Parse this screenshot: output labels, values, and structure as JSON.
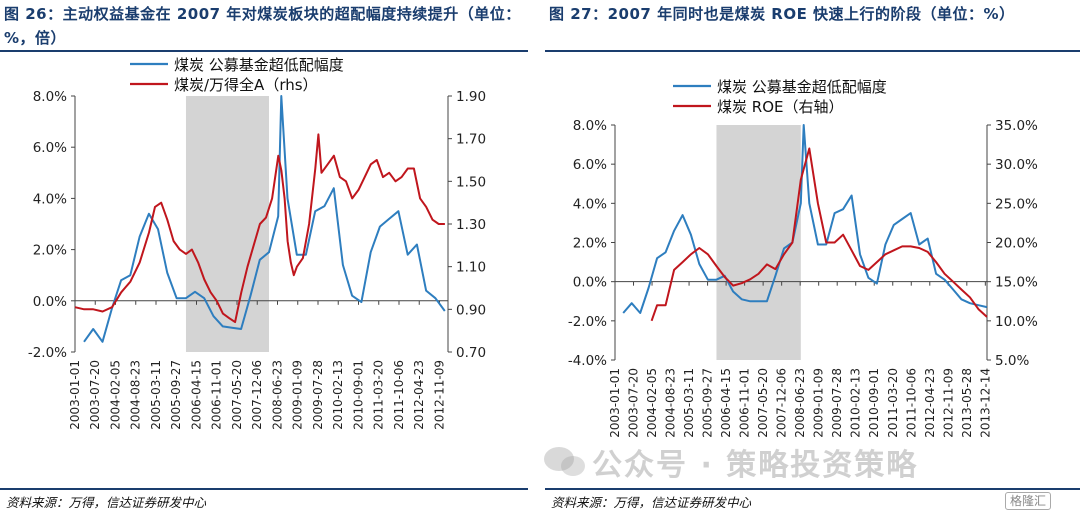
{
  "left": {
    "title": "图 26：主动权益基金在 2007 年对煤炭板块的超配幅度持续提升（单位：%，倍）",
    "source": "资料来源：万得，信达证券研发中心"
  },
  "right": {
    "title": "图 27：2007 年同时也是煤炭 ROE 快速上行的阶段（单位：%）",
    "source": "资料来源：万得，信达证券研发中心"
  },
  "watermark": "公众号 · 策略投资策略",
  "logo": "格隆汇",
  "chart_data": [
    {
      "type": "line",
      "x_ticks": [
        "2003-01-01",
        "2003-07-20",
        "2004-02-05",
        "2004-08-23",
        "2005-03-11",
        "2005-09-27",
        "2006-04-15",
        "2006-11-01",
        "2007-05-20",
        "2007-12-06",
        "2008-06-23",
        "2009-01-09",
        "2009-07-28",
        "2010-02-13",
        "2010-09-01",
        "2011-03-20",
        "2011-10-06",
        "2012-04-23",
        "2012-11-09"
      ],
      "x_range": [
        "2003-01-01",
        "2013-02-01"
      ],
      "y_left_ticks": [
        "-2.0%",
        "0.0%",
        "2.0%",
        "4.0%",
        "6.0%",
        "8.0%"
      ],
      "y_left_range": [
        -2,
        8
      ],
      "y_right_ticks": [
        "0.70",
        "0.90",
        "1.10",
        "1.30",
        "1.50",
        "1.70",
        "1.90"
      ],
      "y_right_range": [
        0.7,
        1.9
      ],
      "shaded_range": [
        "2006-01-01",
        "2008-03-31"
      ],
      "grid": false,
      "legend_position": "top",
      "series": [
        {
          "name": "煤炭 公募基金超低配幅度",
          "color": "#2e7ebf",
          "axis": "left",
          "points": [
            [
              "2003-03-31",
              -1.6
            ],
            [
              "2003-06-30",
              -1.1
            ],
            [
              "2003-09-30",
              -1.6
            ],
            [
              "2003-12-31",
              -0.3
            ],
            [
              "2004-03-31",
              0.8
            ],
            [
              "2004-06-30",
              1.0
            ],
            [
              "2004-09-30",
              2.5
            ],
            [
              "2004-12-31",
              3.4
            ],
            [
              "2005-03-31",
              2.8
            ],
            [
              "2005-06-30",
              1.1
            ],
            [
              "2005-09-30",
              0.1
            ],
            [
              "2005-12-31",
              0.1
            ],
            [
              "2006-03-31",
              0.35
            ],
            [
              "2006-06-30",
              0.1
            ],
            [
              "2006-09-30",
              -0.6
            ],
            [
              "2006-12-31",
              -1.0
            ],
            [
              "2007-03-31",
              -1.05
            ],
            [
              "2007-06-30",
              -1.1
            ],
            [
              "2007-09-30",
              0.2
            ],
            [
              "2007-12-31",
              1.6
            ],
            [
              "2008-03-31",
              1.9
            ],
            [
              "2008-06-30",
              3.3
            ],
            [
              "2008-07-31",
              8.0
            ],
            [
              "2008-09-30",
              4.0
            ],
            [
              "2008-12-31",
              1.8
            ],
            [
              "2009-03-31",
              1.8
            ],
            [
              "2009-06-30",
              3.5
            ],
            [
              "2009-09-30",
              3.7
            ],
            [
              "2009-12-31",
              4.4
            ],
            [
              "2010-03-31",
              1.4
            ],
            [
              "2010-06-30",
              0.2
            ],
            [
              "2010-09-30",
              -0.05
            ],
            [
              "2010-12-31",
              1.9
            ],
            [
              "2011-03-31",
              2.9
            ],
            [
              "2011-06-30",
              3.2
            ],
            [
              "2011-09-30",
              3.5
            ],
            [
              "2011-12-31",
              1.8
            ],
            [
              "2012-03-31",
              2.2
            ],
            [
              "2012-06-30",
              0.4
            ],
            [
              "2012-09-30",
              0.1
            ],
            [
              "2012-12-31",
              -0.4
            ]
          ]
        },
        {
          "name": "煤炭/万得全A（rhs）",
          "color": "#c0161d",
          "axis": "right",
          "points": [
            [
              "2003-01-01",
              0.91
            ],
            [
              "2003-04-01",
              0.9
            ],
            [
              "2003-07-01",
              0.9
            ],
            [
              "2003-10-01",
              0.89
            ],
            [
              "2004-01-01",
              0.91
            ],
            [
              "2004-04-01",
              0.98
            ],
            [
              "2004-07-01",
              1.03
            ],
            [
              "2004-10-01",
              1.12
            ],
            [
              "2005-01-01",
              1.26
            ],
            [
              "2005-03-01",
              1.38
            ],
            [
              "2005-05-01",
              1.4
            ],
            [
              "2005-07-01",
              1.32
            ],
            [
              "2005-09-01",
              1.22
            ],
            [
              "2005-11-01",
              1.18
            ],
            [
              "2006-01-01",
              1.16
            ],
            [
              "2006-03-01",
              1.18
            ],
            [
              "2006-05-01",
              1.12
            ],
            [
              "2006-07-01",
              1.04
            ],
            [
              "2006-09-01",
              0.98
            ],
            [
              "2006-11-01",
              0.94
            ],
            [
              "2007-01-01",
              0.88
            ],
            [
              "2007-03-01",
              0.86
            ],
            [
              "2007-05-01",
              0.84
            ],
            [
              "2007-07-01",
              0.98
            ],
            [
              "2007-09-01",
              1.1
            ],
            [
              "2007-11-01",
              1.2
            ],
            [
              "2008-01-01",
              1.3
            ],
            [
              "2008-03-01",
              1.33
            ],
            [
              "2008-05-01",
              1.42
            ],
            [
              "2008-07-01",
              1.62
            ],
            [
              "2008-08-01",
              1.55
            ],
            [
              "2008-09-01",
              1.42
            ],
            [
              "2008-10-01",
              1.22
            ],
            [
              "2008-11-01",
              1.12
            ],
            [
              "2008-12-01",
              1.06
            ],
            [
              "2009-01-01",
              1.1
            ],
            [
              "2009-03-01",
              1.14
            ],
            [
              "2009-05-01",
              1.3
            ],
            [
              "2009-07-01",
              1.56
            ],
            [
              "2009-08-01",
              1.72
            ],
            [
              "2009-09-01",
              1.54
            ],
            [
              "2009-11-01",
              1.58
            ],
            [
              "2010-01-01",
              1.62
            ],
            [
              "2010-03-01",
              1.52
            ],
            [
              "2010-05-01",
              1.5
            ],
            [
              "2010-07-01",
              1.42
            ],
            [
              "2010-09-01",
              1.46
            ],
            [
              "2010-11-01",
              1.52
            ],
            [
              "2011-01-01",
              1.58
            ],
            [
              "2011-03-01",
              1.6
            ],
            [
              "2011-05-01",
              1.52
            ],
            [
              "2011-07-01",
              1.54
            ],
            [
              "2011-09-01",
              1.5
            ],
            [
              "2011-11-01",
              1.52
            ],
            [
              "2012-01-01",
              1.56
            ],
            [
              "2012-03-01",
              1.56
            ],
            [
              "2012-05-01",
              1.42
            ],
            [
              "2012-07-01",
              1.38
            ],
            [
              "2012-09-01",
              1.32
            ],
            [
              "2012-11-01",
              1.3
            ],
            [
              "2013-01-01",
              1.3
            ]
          ]
        }
      ]
    },
    {
      "type": "line",
      "x_ticks": [
        "2003-01-01",
        "2003-07-20",
        "2004-02-05",
        "2004-08-23",
        "2005-03-11",
        "2005-09-27",
        "2006-04-15",
        "2006-11-01",
        "2007-05-20",
        "2007-12-06",
        "2008-06-23",
        "2009-01-09",
        "2009-07-28",
        "2010-02-13",
        "2010-09-01",
        "2011-03-20",
        "2011-10-06",
        "2012-04-23",
        "2012-11-09",
        "2013-05-28",
        "2013-12-14"
      ],
      "x_range": [
        "2003-01-01",
        "2014-01-01"
      ],
      "y_left_ticks": [
        "-4.0%",
        "-2.0%",
        "0.0%",
        "2.0%",
        "4.0%",
        "6.0%",
        "8.0%"
      ],
      "y_left_range": [
        -4,
        8
      ],
      "y_right_ticks": [
        "5.0%",
        "10.0%",
        "15.0%",
        "20.0%",
        "25.0%",
        "30.0%",
        "35.0%"
      ],
      "y_right_range": [
        5,
        35
      ],
      "shaded_range": [
        "2006-01-01",
        "2008-06-30"
      ],
      "grid": false,
      "legend_position": "top",
      "series": [
        {
          "name": "煤炭 公募基金超低配幅度",
          "color": "#2e7ebf",
          "axis": "left",
          "points": [
            [
              "2003-03-31",
              -1.6
            ],
            [
              "2003-06-30",
              -1.1
            ],
            [
              "2003-09-30",
              -1.6
            ],
            [
              "2003-12-31",
              -0.3
            ],
            [
              "2004-03-31",
              1.2
            ],
            [
              "2004-06-30",
              1.5
            ],
            [
              "2004-09-30",
              2.6
            ],
            [
              "2004-12-31",
              3.4
            ],
            [
              "2005-03-31",
              2.4
            ],
            [
              "2005-06-30",
              0.9
            ],
            [
              "2005-09-30",
              0.1
            ],
            [
              "2005-12-31",
              0.1
            ],
            [
              "2006-03-31",
              0.3
            ],
            [
              "2006-06-30",
              -0.5
            ],
            [
              "2006-09-30",
              -0.9
            ],
            [
              "2006-12-31",
              -1.0
            ],
            [
              "2007-03-31",
              -1.0
            ],
            [
              "2007-06-30",
              -1.0
            ],
            [
              "2007-09-30",
              0.3
            ],
            [
              "2007-12-31",
              1.7
            ],
            [
              "2008-03-31",
              2.0
            ],
            [
              "2008-06-30",
              4.0
            ],
            [
              "2008-07-31",
              8.0
            ],
            [
              "2008-09-30",
              4.0
            ],
            [
              "2008-12-31",
              1.9
            ],
            [
              "2009-03-31",
              1.9
            ],
            [
              "2009-06-30",
              3.5
            ],
            [
              "2009-09-30",
              3.7
            ],
            [
              "2009-12-31",
              4.4
            ],
            [
              "2010-03-31",
              1.4
            ],
            [
              "2010-06-30",
              0.2
            ],
            [
              "2010-09-30",
              -0.1
            ],
            [
              "2010-12-31",
              1.9
            ],
            [
              "2011-03-31",
              2.9
            ],
            [
              "2011-06-30",
              3.2
            ],
            [
              "2011-09-30",
              3.5
            ],
            [
              "2011-12-31",
              1.9
            ],
            [
              "2012-03-31",
              2.2
            ],
            [
              "2012-06-30",
              0.4
            ],
            [
              "2012-09-30",
              0.1
            ],
            [
              "2012-12-31",
              -0.4
            ],
            [
              "2013-03-31",
              -0.9
            ],
            [
              "2013-06-30",
              -1.1
            ],
            [
              "2013-09-30",
              -1.2
            ],
            [
              "2013-12-31",
              -1.3
            ]
          ]
        },
        {
          "name": "煤炭 ROE（右轴）",
          "color": "#c0161d",
          "axis": "right",
          "points": [
            [
              "2004-01-31",
              10.0
            ],
            [
              "2004-03-31",
              12.0
            ],
            [
              "2004-06-30",
              12.0
            ],
            [
              "2004-09-30",
              16.5
            ],
            [
              "2004-12-31",
              17.5
            ],
            [
              "2005-03-31",
              18.5
            ],
            [
              "2005-06-30",
              19.3
            ],
            [
              "2005-09-30",
              18.5
            ],
            [
              "2005-12-31",
              17.0
            ],
            [
              "2006-03-31",
              15.6
            ],
            [
              "2006-06-30",
              14.5
            ],
            [
              "2006-09-30",
              14.8
            ],
            [
              "2006-12-31",
              15.3
            ],
            [
              "2007-03-31",
              16.0
            ],
            [
              "2007-06-30",
              17.2
            ],
            [
              "2007-09-30",
              16.6
            ],
            [
              "2007-12-31",
              18.5
            ],
            [
              "2008-03-31",
              20.0
            ],
            [
              "2008-06-30",
              28.0
            ],
            [
              "2008-09-30",
              32.0
            ],
            [
              "2008-12-31",
              25.0
            ],
            [
              "2009-03-31",
              20.0
            ],
            [
              "2009-06-30",
              20.0
            ],
            [
              "2009-09-30",
              21.0
            ],
            [
              "2009-12-31",
              19.0
            ],
            [
              "2010-03-31",
              17.0
            ],
            [
              "2010-06-30",
              16.5
            ],
            [
              "2010-09-30",
              17.5
            ],
            [
              "2010-12-31",
              18.5
            ],
            [
              "2011-03-31",
              19.0
            ],
            [
              "2011-06-30",
              19.5
            ],
            [
              "2011-09-30",
              19.5
            ],
            [
              "2011-12-31",
              19.3
            ],
            [
              "2012-03-31",
              18.8
            ],
            [
              "2012-06-30",
              17.5
            ],
            [
              "2012-09-30",
              16.0
            ],
            [
              "2012-12-31",
              15.0
            ],
            [
              "2013-03-31",
              14.0
            ],
            [
              "2013-06-30",
              13.0
            ],
            [
              "2013-09-30",
              11.5
            ],
            [
              "2013-12-31",
              10.5
            ]
          ]
        }
      ]
    }
  ]
}
